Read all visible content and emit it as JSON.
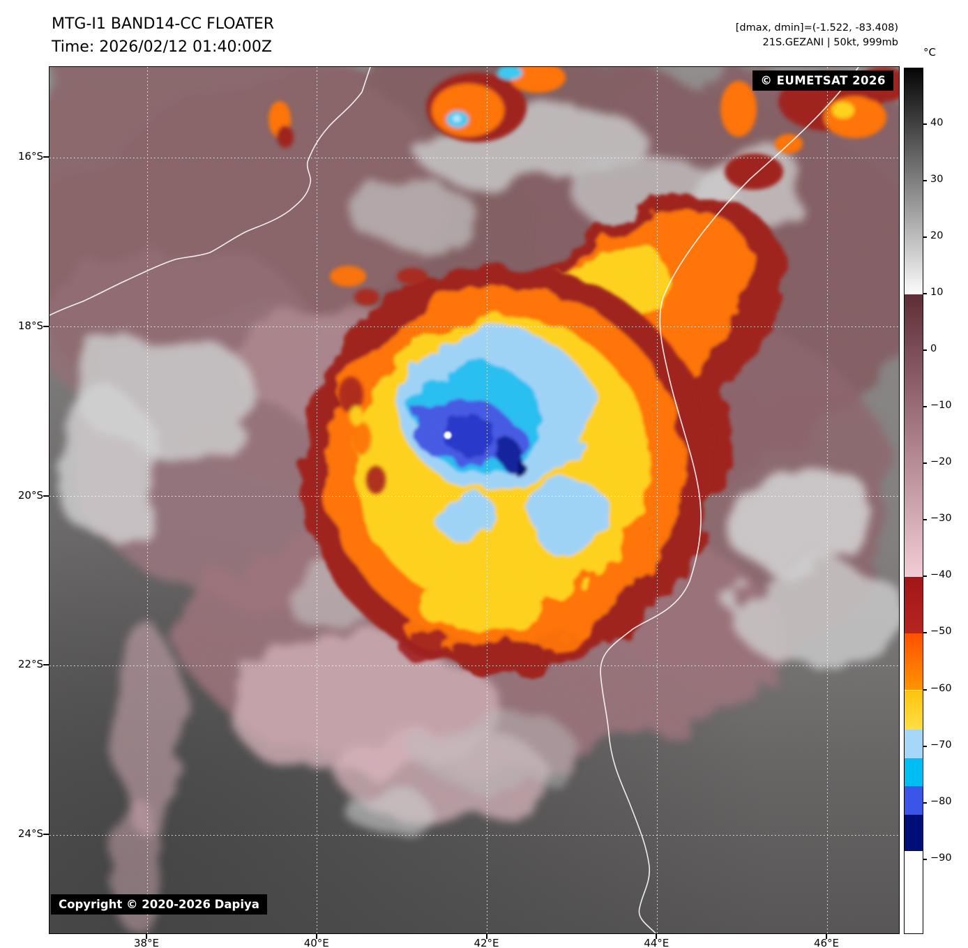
{
  "header": {
    "title": "MTG-I1 BAND14-CC FLOATER",
    "time": "Time: 2026/02/12 01:40:00Z",
    "dmax_dmin": "[dmax, dmin]=(-1.522, -83.408)",
    "storm_info": "21S.GEZANI | 50kt, 999mb"
  },
  "map": {
    "eumetsat_credit": "© EUMETSAT 2026",
    "copyright": "Copyright © 2020-2026 Dapiya"
  },
  "axes": {
    "lat_ticks": [
      {
        "label": "16°S",
        "value": 16
      },
      {
        "label": "18°S",
        "value": 18
      },
      {
        "label": "20°S",
        "value": 20
      },
      {
        "label": "22°S",
        "value": 22
      },
      {
        "label": "24°S",
        "value": 24
      }
    ],
    "lon_ticks": [
      {
        "label": "38°E",
        "value": 38
      },
      {
        "label": "40°E",
        "value": 40
      },
      {
        "label": "42°E",
        "value": 42
      },
      {
        "label": "44°E",
        "value": 44
      },
      {
        "label": "46°E",
        "value": 46
      }
    ]
  },
  "colorbar": {
    "unit": "°C",
    "ticks": [
      {
        "label": "40",
        "value": 40
      },
      {
        "label": "30",
        "value": 30
      },
      {
        "label": "20",
        "value": 20
      },
      {
        "label": "10",
        "value": 10
      },
      {
        "label": "0",
        "value": 0
      },
      {
        "label": "−10",
        "value": -10
      },
      {
        "label": "−20",
        "value": -20
      },
      {
        "label": "−30",
        "value": -30
      },
      {
        "label": "−40",
        "value": -40
      },
      {
        "label": "−50",
        "value": -50
      },
      {
        "label": "−60",
        "value": -60
      },
      {
        "label": "−70",
        "value": -70
      },
      {
        "label": "−80",
        "value": -80
      },
      {
        "label": "−90",
        "value": -90
      }
    ],
    "segments": [
      {
        "from": 50,
        "to": 10,
        "c1": "#050505",
        "c2": "#fbfbfb"
      },
      {
        "from": 10,
        "to": -40,
        "c1": "#5e2e37",
        "c2": "#f2ccd5"
      },
      {
        "from": -40,
        "to": -50,
        "c1": "#a31518",
        "c2": "#b52520"
      },
      {
        "from": -50,
        "to": -60,
        "c1": "#ff5000",
        "c2": "#ff9400"
      },
      {
        "from": -60,
        "to": -67,
        "c1": "#ffc40e",
        "c2": "#ffdf45"
      },
      {
        "from": -67,
        "to": -72,
        "c1": "#a6d7f8",
        "c2": "#a6d7f8"
      },
      {
        "from": -72,
        "to": -77,
        "c1": "#00bdf2",
        "c2": "#00bdf2"
      },
      {
        "from": -77,
        "to": -82,
        "c1": "#3a55e8",
        "c2": "#3a55e8"
      },
      {
        "from": -82,
        "to": -88.5,
        "c1": "#000e78",
        "c2": "#000e78"
      },
      {
        "from": -88.5,
        "to": -103,
        "c1": "#ffffff",
        "c2": "#ffffff"
      }
    ]
  }
}
